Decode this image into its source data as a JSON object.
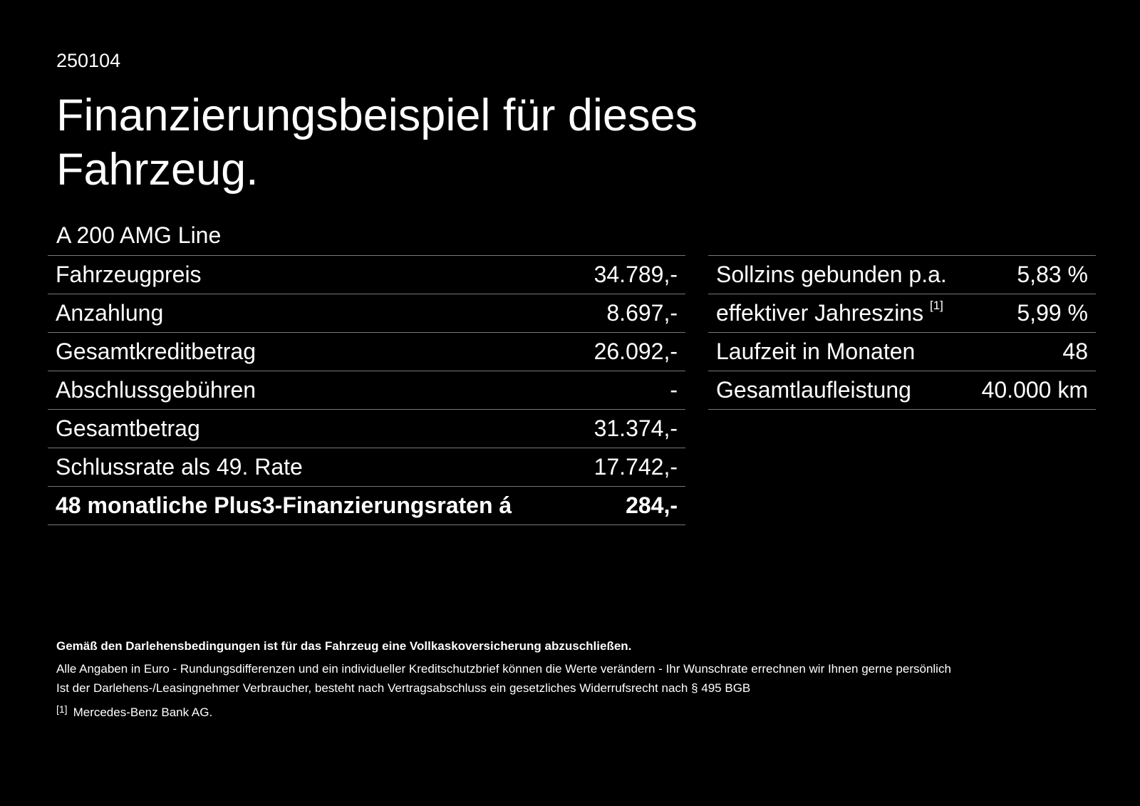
{
  "header": {
    "code": "250104",
    "title": "Finanzierungsbeispiel für dieses Fahrzeug.",
    "model": "A 200 AMG Line"
  },
  "left_table": {
    "rows": [
      [
        "Fahrzeugpreis",
        "34.789,-"
      ],
      [
        "Anzahlung",
        "8.697,-"
      ],
      [
        "Gesamtkreditbetrag",
        "26.092,-"
      ],
      [
        "Abschlussgebühren",
        "-"
      ],
      [
        "Gesamtbetrag",
        "31.374,-"
      ],
      [
        "Schlussrate als 49. Rate",
        "17.742,-"
      ],
      [
        "48 monatliche Plus3-Finanzierungsraten á",
        "284,-"
      ]
    ]
  },
  "right_table": {
    "rows": [
      {
        "label": "Sollzins gebunden p.a.",
        "value": "5,83 %"
      },
      {
        "label": "effektiver Jahreszins",
        "note": "[1]",
        "value": "5,99 %"
      },
      {
        "label": "Laufzeit in Monaten",
        "value": "48"
      },
      {
        "label": "Gesamtlaufleistung",
        "value": "40.000 km"
      }
    ]
  },
  "footer": {
    "bold_line": "Gemäß den Darlehensbedingungen ist für das Fahrzeug eine Vollkaskoversicherung abzuschließen.",
    "lines": [
      "Alle Angaben in Euro - Rundungsdifferenzen und ein individueller Kreditschutzbrief können die Werte verändern - Ihr Wunschrate errechnen wir Ihnen gerne persönlich",
      "Ist der Darlehens-/Leasingnehmer Verbraucher, besteht nach Vertragsabschluss ein gesetzliches Widerrufsrecht nach § 495 BGB"
    ],
    "footnote": {
      "marker": "[1]",
      "text": "Mercedes-Benz Bank AG."
    }
  }
}
